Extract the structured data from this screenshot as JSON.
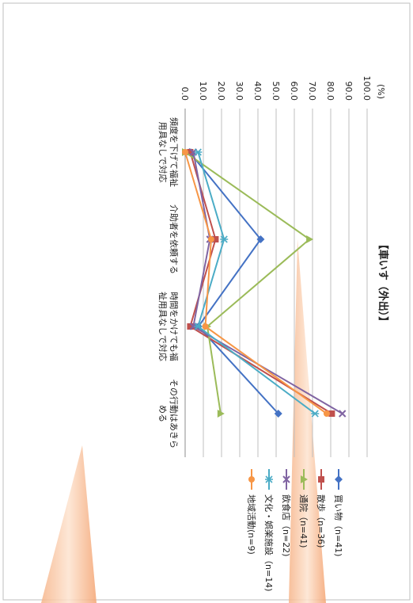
{
  "chart_data": {
    "type": "line",
    "title": "【車いす（外出）】",
    "unit_label": "(%)",
    "ylim": [
      0,
      100
    ],
    "y_ticks": [
      "0.0",
      "10.0",
      "20.0",
      "30.0",
      "40.0",
      "50.0",
      "60.0",
      "70.0",
      "80.0",
      "90.0",
      "100.0"
    ],
    "grid": true,
    "legend_position": "right",
    "categories": [
      "頻度を下げて福祉用具なしで対応",
      "介助者を依頼する",
      "時間をかけても福祉用具なしで対応",
      "その行動はあきらめる"
    ],
    "series": [
      {
        "name": "買い物（n=41)",
        "color": "#4472C4",
        "marker": "diamond",
        "values": [
          2.4,
          41.5,
          7.3,
          51.2
        ]
      },
      {
        "name": "散歩（n=36)",
        "color": "#C0504D",
        "marker": "square",
        "values": [
          2.8,
          16.7,
          2.8,
          80.6
        ]
      },
      {
        "name": "通院（n=41)",
        "color": "#9BBB59",
        "marker": "triangle",
        "values": [
          0.0,
          68.3,
          12.2,
          19.5
        ]
      },
      {
        "name": "飲食店（n=22)",
        "color": "#8064A2",
        "marker": "x",
        "values": [
          4.5,
          13.6,
          4.5,
          86.4
        ]
      },
      {
        "name": "文化・娯楽施設（n=14)",
        "color": "#4BACC6",
        "marker": "star",
        "values": [
          7.1,
          21.4,
          7.1,
          71.4
        ]
      },
      {
        "name": "地域活動(n=9)",
        "color": "#F79646",
        "marker": "circle",
        "values": [
          0.0,
          14.3,
          11.1,
          77.8
        ]
      }
    ]
  }
}
